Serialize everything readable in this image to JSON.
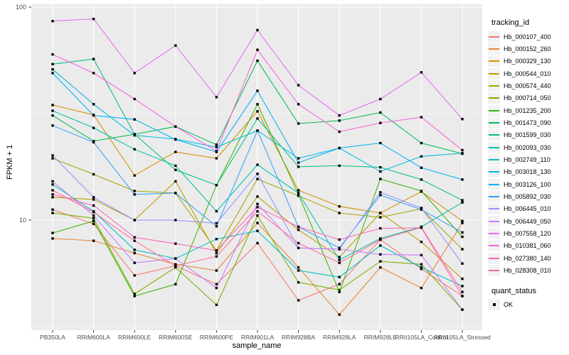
{
  "chart_data": {
    "type": "line",
    "title": "",
    "xlabel": "sample_name",
    "ylabel": "FPKM + 1",
    "y_scale": "log10",
    "y_ticks": [
      {
        "label": "100",
        "value": 100
      },
      {
        "label": "10",
        "value": 10
      }
    ],
    "y_minor_gridlines": [
      31.62,
      3.162
    ],
    "ylim": [
      3.05,
      103
    ],
    "grid": "on",
    "panel_bg": "#EBEBEB",
    "grid_color": "#FFFFFF",
    "tick_label_color": "#4d4d4d",
    "legend_position": "right",
    "legend_title": "tracking_id",
    "marker": "black-square",
    "categories": [
      "PB350LA",
      "RRIM600LA",
      "RRIM600LE",
      "RRIM600SE",
      "RRIM600PE",
      "RRIM901LA",
      "RRIM928BA",
      "RRIM928LA",
      "RRIM928LE",
      "RRII105LA_Control",
      "RRII105LA_Stressed"
    ],
    "series": [
      {
        "name": "Hb_000107_400",
        "color": "#F8766D",
        "values": [
          11.2,
          9.6,
          5.5,
          6.1,
          5.0,
          7.8,
          4.2,
          5.0,
          8.1,
          5.9,
          4.4
        ]
      },
      {
        "name": "Hb_000152_260",
        "color": "#EA8331",
        "values": [
          8.2,
          8.0,
          7.0,
          6.2,
          5.8,
          9.7,
          6.0,
          3.6,
          6.0,
          4.8,
          9.7
        ]
      },
      {
        "name": "Hb_000329_130",
        "color": "#D89000",
        "values": [
          34.7,
          31.2,
          16.2,
          20.9,
          19.5,
          32.4,
          13.8,
          11.6,
          10.8,
          13.6,
          9.9
        ]
      },
      {
        "name": "Hb_000544_010",
        "color": "#C09B00",
        "values": [
          12.8,
          12.5,
          10.0,
          15.2,
          7.0,
          12.9,
          9.0,
          6.7,
          10.8,
          7.9,
          5.3
        ]
      },
      {
        "name": "Hb_000574_440",
        "color": "#A3A500",
        "values": [
          19.5,
          16.4,
          13.7,
          13.4,
          7.2,
          15.6,
          13.0,
          10.8,
          10.3,
          11.3,
          7.3
        ]
      },
      {
        "name": "Hb_000714_050",
        "color": "#7CAE00",
        "values": [
          10.8,
          10.2,
          4.5,
          6.0,
          4.0,
          10.5,
          5.1,
          4.7,
          6.4,
          6.2,
          3.8
        ]
      },
      {
        "name": "Hb_001235_200",
        "color": "#39B600",
        "values": [
          8.7,
          9.9,
          4.4,
          5.0,
          14.6,
          35.0,
          13.2,
          4.6,
          15.6,
          13.7,
          8.35
        ]
      },
      {
        "name": "Hb_001473_090",
        "color": "#00BB4E",
        "values": [
          31.0,
          23.5,
          25.3,
          27.5,
          22.6,
          56.0,
          28.4,
          29.3,
          32.0,
          23.0,
          20.5
        ]
      },
      {
        "name": "Hb_001599_030",
        "color": "#00BF7D",
        "values": [
          54.0,
          57.0,
          25.3,
          17.2,
          14.6,
          30.0,
          17.8,
          18.0,
          17.7,
          15.5,
          12.4
        ]
      },
      {
        "name": "Hb_002093_030",
        "color": "#00C1A3",
        "values": [
          32.6,
          27.1,
          21.5,
          18.0,
          11.0,
          18.2,
          13.4,
          6.5,
          8.2,
          9.3,
          12.1
        ]
      },
      {
        "name": "Hb_002749_110",
        "color": "#00BFC4",
        "values": [
          14.7,
          11.0,
          7.25,
          6.6,
          8.15,
          8.9,
          5.8,
          5.4,
          7.6,
          6.0,
          4.9
        ]
      },
      {
        "name": "Hb_003018_130",
        "color": "#00BAE0",
        "values": [
          51.0,
          35.0,
          25.0,
          24.0,
          22.0,
          26.3,
          19.5,
          21.8,
          16.9,
          19.9,
          20.6
        ]
      },
      {
        "name": "Hb_003126_100",
        "color": "#00B0F6",
        "values": [
          49.0,
          31.0,
          29.7,
          23.9,
          20.9,
          40.5,
          18.6,
          21.8,
          23.0,
          17.6,
          15.5
        ]
      },
      {
        "name": "Hb_005892_030",
        "color": "#35A2FF",
        "values": [
          27.8,
          23.2,
          13.2,
          13.4,
          9.35,
          26.3,
          9.3,
          7.4,
          13.1,
          11.2,
          8.75
        ]
      },
      {
        "name": "Hb_006445_010",
        "color": "#9590FF",
        "values": [
          20.1,
          12.8,
          10.0,
          10.0,
          9.66,
          16.5,
          7.4,
          7.3,
          13.5,
          11.4,
          6.25
        ]
      },
      {
        "name": "Hb_006449_050",
        "color": "#C77CFF",
        "values": [
          15.2,
          10.5,
          6.3,
          6.6,
          4.8,
          11.9,
          7.4,
          7.3,
          6.9,
          6.85,
          3.8
        ]
      },
      {
        "name": "Hb_007558_120",
        "color": "#E76BF3",
        "values": [
          86.0,
          88.0,
          49.0,
          66.0,
          37.8,
          78.0,
          43.0,
          31.0,
          37.0,
          49.4,
          29.8
        ]
      },
      {
        "name": "Hb_010381_060",
        "color": "#FA62DB",
        "values": [
          60.0,
          49.0,
          37.0,
          27.5,
          21.1,
          63.0,
          35.0,
          26.0,
          28.6,
          30.4,
          21.3
        ]
      },
      {
        "name": "Hb_027380_140",
        "color": "#FF62BC",
        "values": [
          13.2,
          11.7,
          8.3,
          7.75,
          7.2,
          11.5,
          9.3,
          8.1,
          9.15,
          9.2,
          4.4
        ]
      },
      {
        "name": "Hb_028308_010",
        "color": "#FF6A98",
        "values": [
          13.8,
          10.9,
          8.0,
          6.1,
          6.75,
          11.0,
          7.8,
          6.3,
          8.1,
          9.25,
          4.6
        ]
      }
    ],
    "quant_legend": {
      "title": "quant_status",
      "items": [
        {
          "label": "OK",
          "marker_color": "#000000"
        }
      ]
    }
  }
}
